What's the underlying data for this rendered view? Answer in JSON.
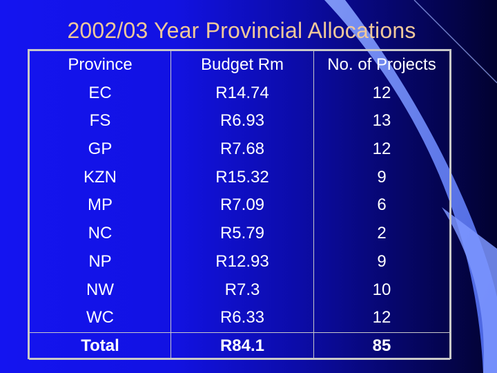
{
  "slide": {
    "title": "2002/03 Year Provincial Allocations",
    "colors": {
      "background": "#1414f0",
      "title": "#f0c89a",
      "text": "#ffffff",
      "border": "#c9c9c9",
      "swoosh": "#6d8cff"
    }
  },
  "table": {
    "headers": [
      "Province",
      "Budget Rm",
      "No. of Projects"
    ],
    "rows": [
      {
        "province": "EC",
        "budget": "R14.74",
        "projects": "12"
      },
      {
        "province": "FS",
        "budget": "R6.93",
        "projects": "13"
      },
      {
        "province": "GP",
        "budget": "R7.68",
        "projects": "12"
      },
      {
        "province": "KZN",
        "budget": "R15.32",
        "projects": "9"
      },
      {
        "province": "MP",
        "budget": "R7.09",
        "projects": "6"
      },
      {
        "province": "NC",
        "budget": "R5.79",
        "projects": "2"
      },
      {
        "province": "NP",
        "budget": "R12.93",
        "projects": "9"
      },
      {
        "province": "NW",
        "budget": "R7.3",
        "projects": "10"
      },
      {
        "province": "WC",
        "budget": "R6.33",
        "projects": "12"
      }
    ],
    "total": {
      "province": "Total",
      "budget": "R84.1",
      "projects": "85"
    }
  }
}
